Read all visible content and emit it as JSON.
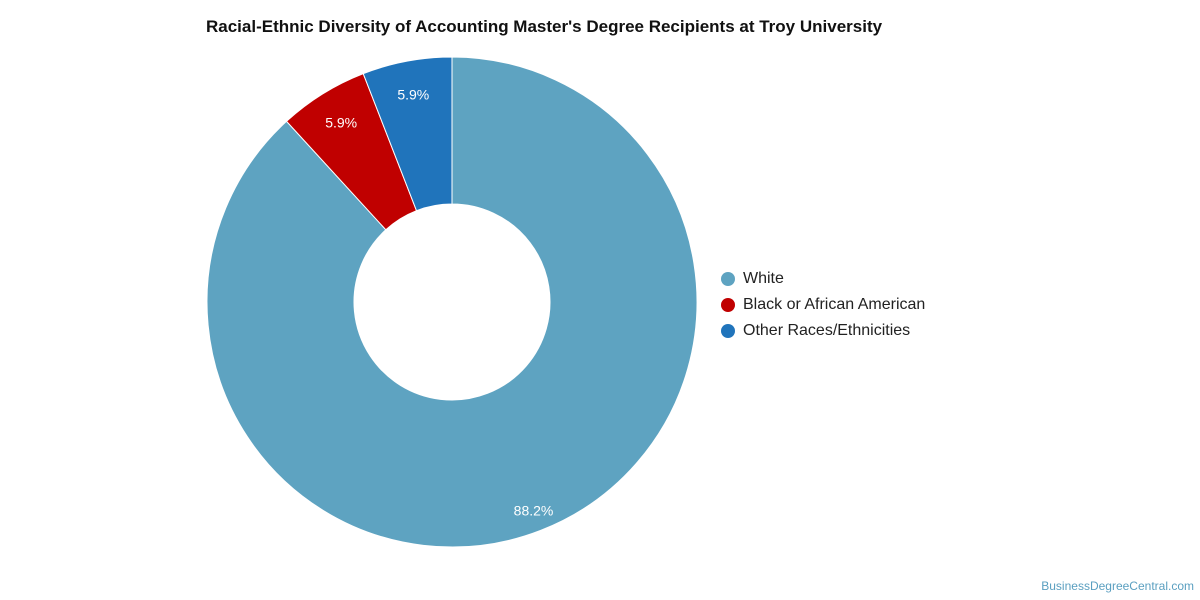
{
  "chart_data": {
    "type": "pie",
    "title": "Racial-Ethnic Diversity of Accounting Master's Degree Recipients at Troy University",
    "donut": true,
    "legend_position": "right",
    "categories": [
      "White",
      "Black or African American",
      "Other Races/Ethnicities"
    ],
    "values": [
      88.2,
      5.9,
      5.9
    ],
    "labels": [
      "88.2%",
      "5.9%",
      "5.9%"
    ],
    "colors": [
      "#5ea3c1",
      "#c00000",
      "#2074bb"
    ]
  },
  "footer": {
    "source": "BusinessDegreeCentral.com"
  }
}
